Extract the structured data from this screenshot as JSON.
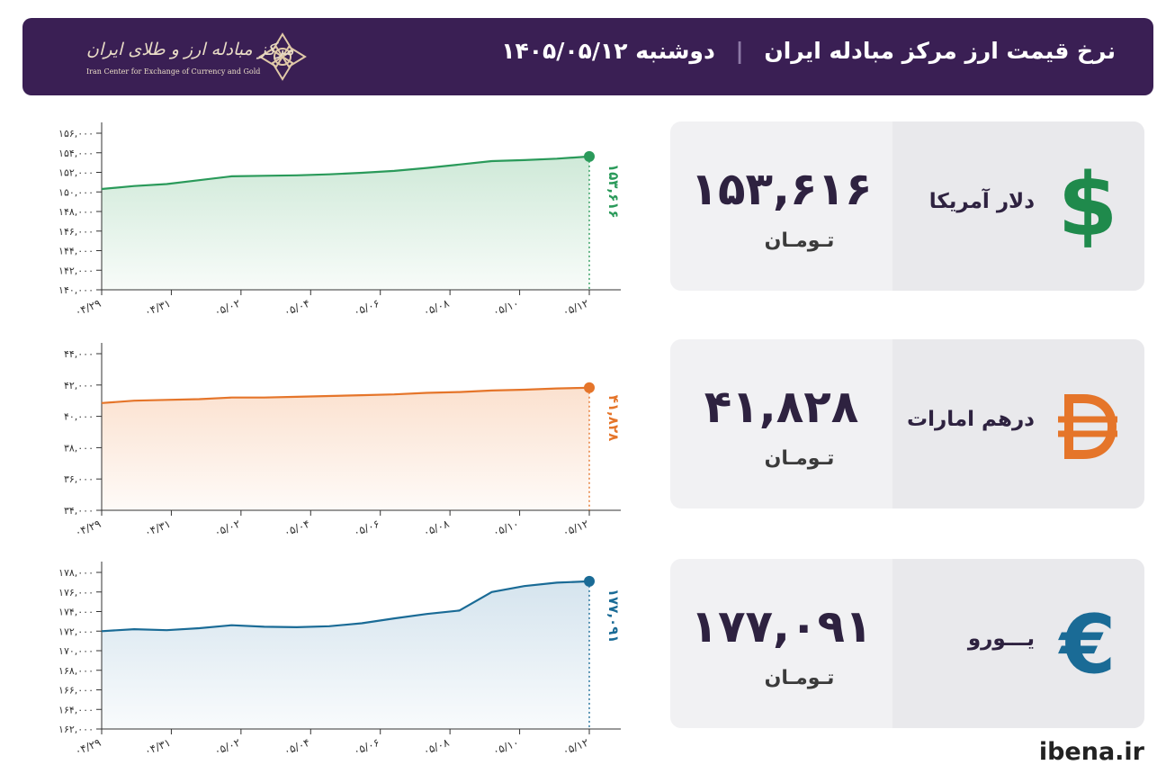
{
  "header": {
    "title": "نرخ قیمت ارز مرکز مبادله ایران",
    "separator": "|",
    "date": "دوشنبه ۱۴۰۵/۰۵/۱۲",
    "logo_text": "مرکز مبادله ارز و طلای ایران",
    "logo_subtitle": "Iran Center for Exchange of Currency and Gold"
  },
  "cards": [
    {
      "name": "دلار آمریکا",
      "price": "۱۵۳,۶۱۶",
      "unit": "تـومـان",
      "icon": "dollar-icon",
      "color": "#1f8a4c"
    },
    {
      "name": "درهم امارات",
      "price": "۴۱,۸۲۸",
      "unit": "تـومـان",
      "icon": "dirham-icon",
      "color": "#e5752a"
    },
    {
      "name": "یـــورو",
      "price": "۱۷۷,۰۹۱",
      "unit": "تـومـان",
      "icon": "euro-icon",
      "color": "#1a6b96"
    }
  ],
  "footer": {
    "site": "ibena.ir"
  },
  "chart_data": [
    {
      "type": "area",
      "color": "#2a9a5a",
      "fill": "#cfe9d8",
      "x_tick_labels": [
        "۰۴/۲۹",
        "۰۴/۳۱",
        "۰۵/۰۲",
        "۰۵/۰۴",
        "۰۵/۰۶",
        "۰۵/۰۸",
        "۰۵/۱۰",
        "۰۵/۱۲"
      ],
      "yticks": [
        140000,
        142000,
        144000,
        146000,
        148000,
        150000,
        152000,
        154000,
        156000
      ],
      "ytick_labels": [
        "۱۴۰,۰۰۰",
        "۱۴۲,۰۰۰",
        "۱۴۴,۰۰۰",
        "۱۴۶,۰۰۰",
        "۱۴۸,۰۰۰",
        "۱۵۰,۰۰۰",
        "۱۵۲,۰۰۰",
        "۱۵۴,۰۰۰",
        "۱۵۶,۰۰۰"
      ],
      "ylim": [
        140000,
        156000
      ],
      "values": [
        150300,
        150600,
        150800,
        151200,
        151600,
        151650,
        151700,
        151800,
        151950,
        152150,
        152450,
        152800,
        153150,
        153250,
        153400,
        153616
      ],
      "last_label": "۱۵۳,۶۱۶"
    },
    {
      "type": "area",
      "color": "#e5752a",
      "fill": "#fbe1cf",
      "x_tick_labels": [
        "۰۴/۲۹",
        "۰۴/۳۱",
        "۰۵/۰۲",
        "۰۵/۰۴",
        "۰۵/۰۶",
        "۰۵/۰۸",
        "۰۵/۱۰",
        "۰۵/۱۲"
      ],
      "yticks": [
        34000,
        36000,
        38000,
        40000,
        42000,
        44000
      ],
      "ytick_labels": [
        "۳۴,۰۰۰",
        "۳۶,۰۰۰",
        "۳۸,۰۰۰",
        "۴۰,۰۰۰",
        "۴۲,۰۰۰",
        "۴۴,۰۰۰"
      ],
      "ylim": [
        34000,
        44000
      ],
      "values": [
        40850,
        41000,
        41050,
        41100,
        41200,
        41200,
        41250,
        41300,
        41350,
        41400,
        41500,
        41550,
        41650,
        41700,
        41780,
        41828
      ],
      "last_label": "۴۱,۸۲۸"
    },
    {
      "type": "area",
      "color": "#1a6b96",
      "fill": "#d5e4ee",
      "x_tick_labels": [
        "۰۴/۲۹",
        "۰۴/۳۱",
        "۰۵/۰۲",
        "۰۵/۰۴",
        "۰۵/۰۶",
        "۰۵/۰۸",
        "۰۵/۱۰",
        "۰۵/۱۲"
      ],
      "yticks": [
        162000,
        164000,
        166000,
        168000,
        170000,
        172000,
        174000,
        176000,
        178000
      ],
      "ytick_labels": [
        "۱۶۲,۰۰۰",
        "۱۶۴,۰۰۰",
        "۱۶۶,۰۰۰",
        "۱۶۸,۰۰۰",
        "۱۷۰,۰۰۰",
        "۱۷۲,۰۰۰",
        "۱۷۴,۰۰۰",
        "۱۷۶,۰۰۰",
        "۱۷۸,۰۰۰"
      ],
      "ylim": [
        162000,
        178000
      ],
      "values": [
        172000,
        172200,
        172100,
        172300,
        172600,
        172450,
        172400,
        172500,
        172800,
        173300,
        173750,
        174100,
        176000,
        176600,
        176950,
        177091
      ],
      "last_label": "۱۷۷,۰۹۱"
    }
  ]
}
